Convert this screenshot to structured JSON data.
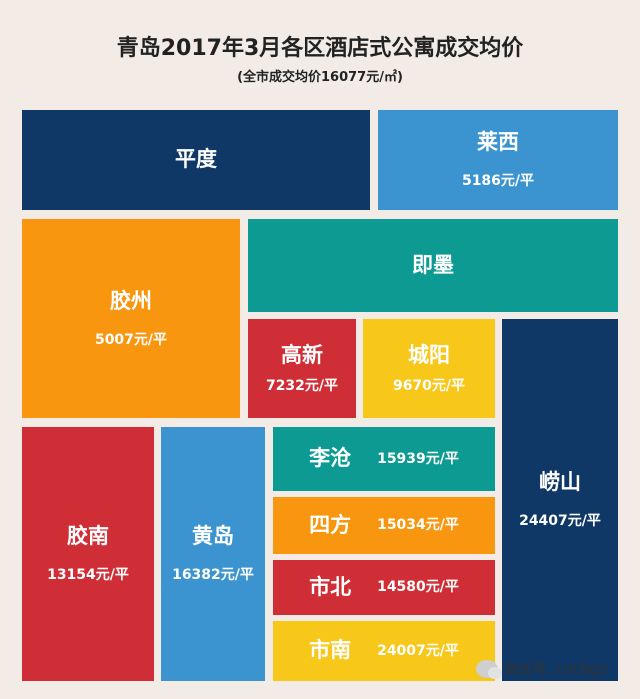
{
  "chart_data": {
    "type": "treemap",
    "title": "青岛2017年3月各区酒店式公寓成交均价",
    "subtitle": "(全市成交均价16077元/㎡)",
    "unit": "元/平",
    "items": [
      {
        "name": "平度",
        "value": null,
        "value_label": "",
        "color": "#0f3866"
      },
      {
        "name": "莱西",
        "value": 5186,
        "value_label": "5186元/平",
        "color": "#3b94cf"
      },
      {
        "name": "胶州",
        "value": 5007,
        "value_label": "5007元/平",
        "color": "#f8960f"
      },
      {
        "name": "即墨",
        "value": null,
        "value_label": "",
        "color": "#0c9a92"
      },
      {
        "name": "高新",
        "value": 7232,
        "value_label": "7232元/平",
        "color": "#cf2e36"
      },
      {
        "name": "城阳",
        "value": 9670,
        "value_label": "9670元/平",
        "color": "#f7c71a"
      },
      {
        "name": "崂山",
        "value": 24407,
        "value_label": "24407元/平",
        "color": "#0f3866"
      },
      {
        "name": "胶南",
        "value": 13154,
        "value_label": "13154元/平",
        "color": "#cf2e36"
      },
      {
        "name": "黄岛",
        "value": 16382,
        "value_label": "16382元/平",
        "color": "#3b94cf"
      },
      {
        "name": "李沧",
        "value": 15939,
        "value_label": "15939元/平",
        "color": "#0c9a92"
      },
      {
        "name": "四方",
        "value": 15034,
        "value_label": "15034元/平",
        "color": "#f8960f"
      },
      {
        "name": "市北",
        "value": 14580,
        "value_label": "14580元/平",
        "color": "#cf2e36"
      },
      {
        "name": "市南",
        "value": 24007,
        "value_label": "24007元/平",
        "color": "#f7c71a"
      }
    ]
  },
  "watermark": {
    "text": "微信号: cricfjqd",
    "icon": "wechat-icon"
  }
}
